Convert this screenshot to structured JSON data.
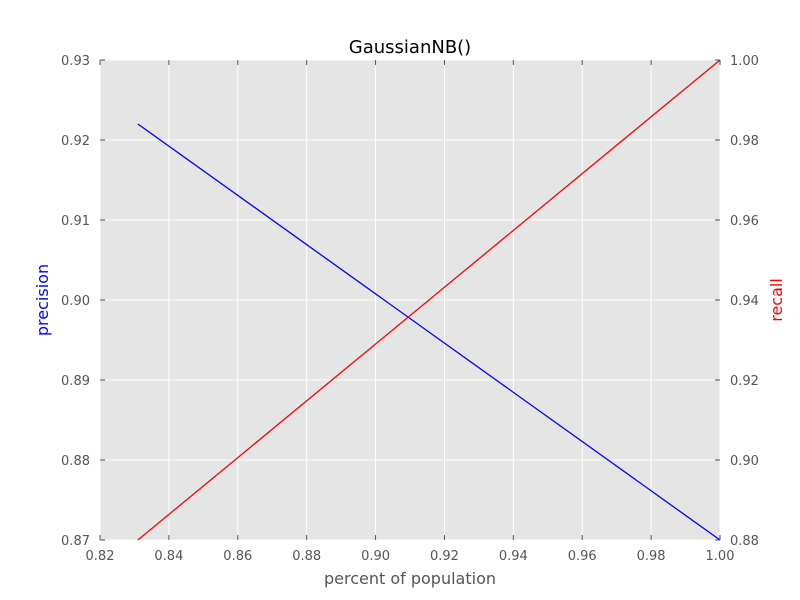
{
  "chart_data": {
    "type": "line",
    "title": "GaussianNB()",
    "xlabel": "percent of population",
    "ylabel_left": "precision",
    "ylabel_right": "recall",
    "xlim": [
      0.82,
      1.0
    ],
    "ylim_left": [
      0.87,
      0.93
    ],
    "ylim_right": [
      0.88,
      1.0
    ],
    "x_ticks": [
      "0.82",
      "0.84",
      "0.86",
      "0.88",
      "0.90",
      "0.92",
      "0.94",
      "0.96",
      "0.98",
      "1.00"
    ],
    "y_left_ticks": [
      "0.87",
      "0.88",
      "0.89",
      "0.90",
      "0.91",
      "0.92",
      "0.93"
    ],
    "y_right_ticks": [
      "0.88",
      "0.90",
      "0.92",
      "0.94",
      "0.96",
      "0.98",
      "1.00"
    ],
    "grid": true,
    "background": "#e5e5e5",
    "series": [
      {
        "axis": "left",
        "color": "#0000ff",
        "x": [
          0.831,
          1.0
        ],
        "values": [
          0.922,
          0.87
        ]
      },
      {
        "axis": "right",
        "color": "#ff0000",
        "x": [
          0.831,
          1.0
        ],
        "values": [
          0.88,
          1.0
        ]
      }
    ],
    "label_colors": {
      "left": "#0000ff",
      "right": "#ff0000",
      "x": "#555555"
    }
  }
}
